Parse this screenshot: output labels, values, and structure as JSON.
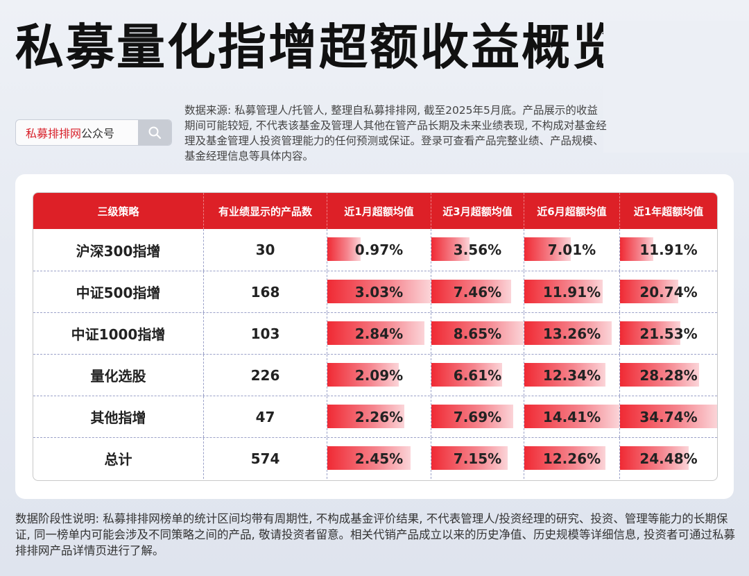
{
  "title": "私募量化指增超额收益概览",
  "search": {
    "brand": "私募排排网",
    "suffix": "公众号",
    "icon": "search-icon"
  },
  "source_note": "数据来源: 私募管理人/托管人, 整理自私募排排网, 截至2025年5月底。产品展示的收益期间可能较短, 不代表该基金及管理人其他在管产品长期及未来业绩表现, 不构成对基金经理及基金管理人投资管理能力的任何预测或保证。登录可查看产品完整业绩、产品规模、基金经理信息等具体内容。",
  "table": {
    "headers": [
      "三级策略",
      "有业绩显示的产品数",
      "近1月超额均值",
      "近3月超额均值",
      "近6月超额均值",
      "近1年超额均值"
    ],
    "rows": [
      {
        "strategy": "沪深300指增",
        "count": "30",
        "m1": "0.97%",
        "m3": "3.56%",
        "m6": "7.01%",
        "y1": "11.91%"
      },
      {
        "strategy": "中证500指增",
        "count": "168",
        "m1": "3.03%",
        "m3": "7.46%",
        "m6": "11.91%",
        "y1": "20.74%"
      },
      {
        "strategy": "中证1000指增",
        "count": "103",
        "m1": "2.84%",
        "m3": "8.65%",
        "m6": "13.26%",
        "y1": "21.53%"
      },
      {
        "strategy": "量化选股",
        "count": "226",
        "m1": "2.09%",
        "m3": "6.61%",
        "m6": "12.34%",
        "y1": "28.28%"
      },
      {
        "strategy": "其他指增",
        "count": "47",
        "m1": "2.26%",
        "m3": "7.69%",
        "m6": "14.41%",
        "y1": "34.74%"
      },
      {
        "strategy": "总计",
        "count": "574",
        "m1": "2.45%",
        "m3": "7.15%",
        "m6": "12.26%",
        "y1": "24.48%"
      }
    ],
    "bar_values": {
      "m1": [
        0.97,
        3.03,
        2.84,
        2.09,
        2.26,
        2.45
      ],
      "m3": [
        3.56,
        7.46,
        8.65,
        6.61,
        7.69,
        7.15
      ],
      "m6": [
        7.01,
        11.91,
        13.26,
        12.34,
        14.41,
        12.26
      ],
      "y1": [
        11.91,
        20.74,
        21.53,
        28.28,
        34.74,
        24.48
      ]
    },
    "bar_color": "#f02a34",
    "header_color": "#dd2027"
  },
  "footer_note": "数据阶段性说明: 私募排排网榜单的统计区间均带有周期性, 不构成基金评价结果, 不代表管理人/投资经理的研究、投资、管理等能力的长期保证, 同一榜单内可能会涉及不同策略之间的产品, 敬请投资者留意。相关代销产品成立以来的历史净值、历史规模等详细信息, 投资者可通过私募排排网产品详情页进行了解。"
}
